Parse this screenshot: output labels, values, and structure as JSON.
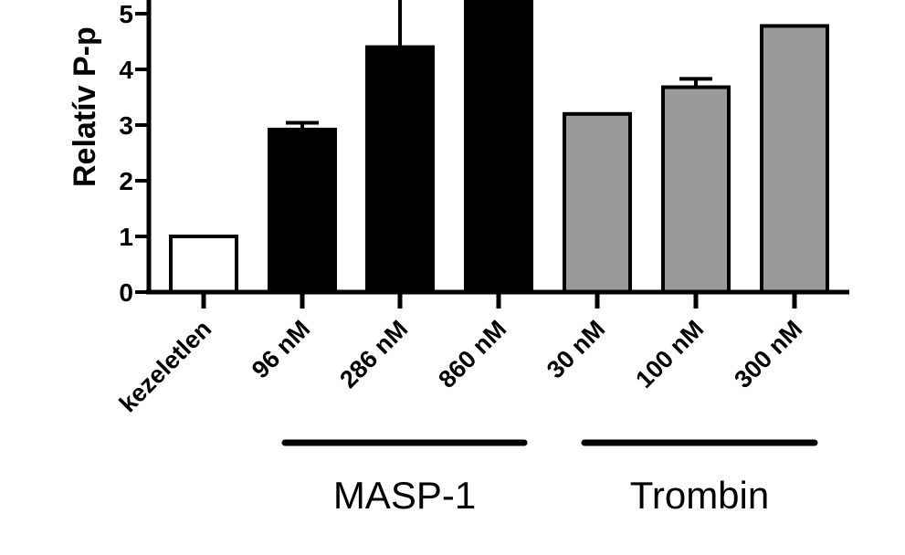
{
  "chart_data": {
    "type": "bar",
    "title": "",
    "ylabel": "Relatív P-p",
    "xlabel": "",
    "ylim": [
      0,
      5.2
    ],
    "yticks": [
      "0",
      "1",
      "2",
      "3",
      "4",
      "5"
    ],
    "categories": [
      "kezeletlen",
      "96 nM",
      "286 nM",
      "860 nM",
      "30 nM",
      "100 nM",
      "300 nM"
    ],
    "values": [
      1.0,
      2.92,
      4.4,
      5.6,
      3.2,
      3.68,
      4.78
    ],
    "errors": [
      0,
      0.12,
      1.3,
      0,
      0,
      0.15,
      0
    ],
    "fills": [
      "#ffffff",
      "#000000",
      "#000000",
      "#000000",
      "#9a9a9a",
      "#9a9a9a",
      "#9a9a9a"
    ],
    "groups": [
      {
        "name": "MASP-1",
        "categories": [
          "96 nM",
          "286 nM",
          "860 nM"
        ]
      },
      {
        "name": "Trombin",
        "categories": [
          "30 nM",
          "100 nM",
          "300 nM"
        ]
      }
    ]
  }
}
